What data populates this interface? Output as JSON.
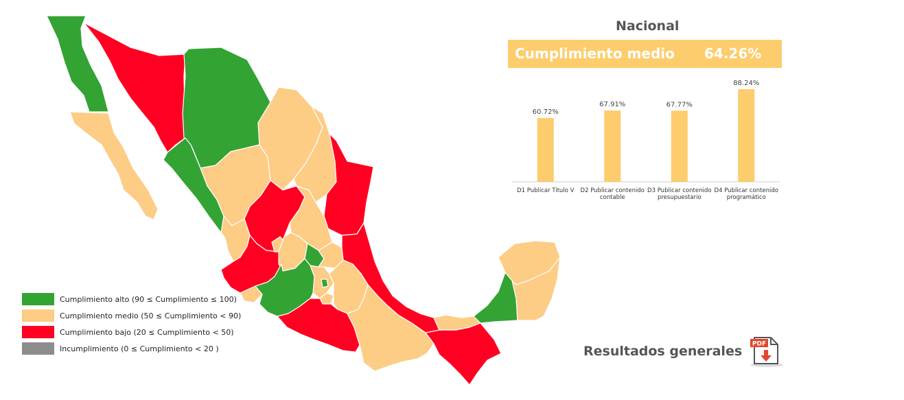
{
  "national": {
    "title": "Nacional",
    "summary_label": "Cumplimiento medio",
    "summary_value": "64.26%"
  },
  "legend": {
    "items": [
      {
        "label": "Cumplimiento alto (90 ≤ Cumplimiento ≤ 100)",
        "color": "#33a333"
      },
      {
        "label": "Cumplimiento medio (50 ≤ Cumplimiento  < 90)",
        "color": "#fdcc85"
      },
      {
        "label": "Cumplimiento bajo (20 ≤ Cumplimiento < 50)",
        "color": "#ff0022"
      },
      {
        "label": "Incumplimiento (0 ≤ Cumplimiento < 20 )",
        "color": "#8c8c8c"
      }
    ]
  },
  "map": {
    "colors": {
      "alto": "#33a333",
      "medio": "#fdcc85",
      "bajo": "#ff0022",
      "incumplimiento": "#8c8c8c"
    }
  },
  "chart_data": {
    "type": "bar",
    "categories": [
      [
        "D1 Publicar Titulo V"
      ],
      [
        "D2 Publicar contenido",
        "contable"
      ],
      [
        "D3 Publicar contenido",
        "presupuestario"
      ],
      [
        "D4 Publicar contenido",
        "programático"
      ]
    ],
    "values": [
      60.72,
      67.91,
      67.77,
      88.24
    ],
    "value_labels": [
      "60.72%",
      "67.91%",
      "67.77%",
      "88.24%"
    ],
    "ylim": [
      0,
      100
    ],
    "bar_color": "#fdcc6c",
    "title": "",
    "xlabel": "",
    "ylabel": ""
  },
  "results": {
    "label": "Resultados generales",
    "icon_text": "PDF"
  }
}
